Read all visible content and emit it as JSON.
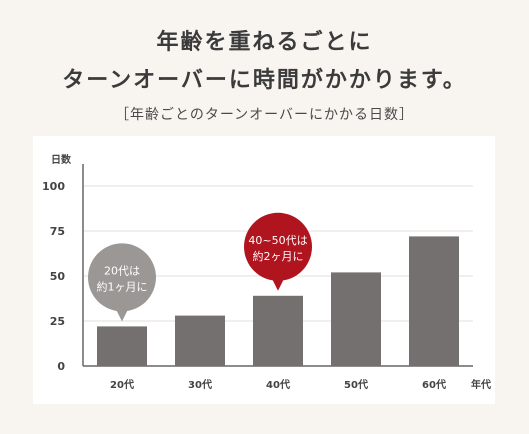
{
  "header": {
    "title_line1": "年齢を重ねるごとに",
    "title_line2": "ターンオーバーに時間がかかります。",
    "subtitle": "［年齢ごとのターンオーバーにかかる日数］"
  },
  "colors": {
    "background": "#f8f5f1",
    "panel": "#ffffff",
    "bar": "#747070",
    "gray_callout": "#9a9794",
    "red_callout": "#b0141e",
    "gridline": "#e2dfdc",
    "axis": "#666666"
  },
  "chart_data": {
    "type": "bar",
    "ylabel": "日数",
    "xlabel": "年代",
    "ylim": [
      0,
      100
    ],
    "yticks": [
      0,
      25,
      50,
      75,
      100
    ],
    "grid": true,
    "categories": [
      "20代",
      "30代",
      "40代",
      "50代",
      "60代"
    ],
    "values": [
      22,
      28,
      39,
      52,
      72
    ],
    "annotations": [
      {
        "target": "20代",
        "line1": "20代は",
        "line2": "約1ヶ月に",
        "style": "gray"
      },
      {
        "target": "40代",
        "line1": "40~50代は",
        "line2": "約2ヶ月に",
        "style": "red"
      }
    ]
  }
}
